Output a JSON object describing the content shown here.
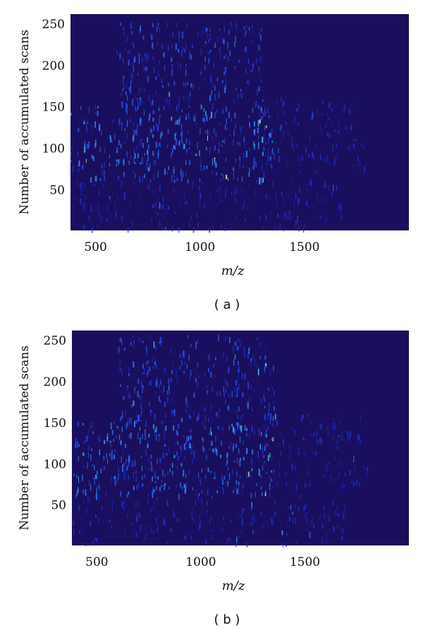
{
  "chart_data": [
    {
      "type": "heatmap",
      "caption": "( a )",
      "xlabel": "m/z",
      "ylabel": "Number of accumulated scans",
      "xlim": [
        380,
        2000
      ],
      "ylim": [
        1,
        262
      ],
      "xticks": [
        500,
        1000,
        1500
      ],
      "yticks": [
        50,
        100,
        150,
        200,
        250
      ],
      "colormap": [
        "#1a0f5e",
        "#1b2bd0",
        "#2e6bff",
        "#2bd0e0",
        "#e8ff8a"
      ],
      "background": "#1a0f5e",
      "density_regions": [
        {
          "mz_range": [
            380,
            1350
          ],
          "scan_range": [
            60,
            150
          ],
          "intensity": "high"
        },
        {
          "mz_range": [
            600,
            1300
          ],
          "scan_range": [
            150,
            250
          ],
          "intensity": "medium"
        },
        {
          "mz_range": [
            1300,
            1800
          ],
          "scan_range": [
            70,
            160
          ],
          "intensity": "low"
        },
        {
          "mz_range": [
            380,
            1700
          ],
          "scan_range": [
            1,
            60
          ],
          "intensity": "low"
        }
      ]
    },
    {
      "type": "heatmap",
      "caption": "( b )",
      "xlabel": "m/z",
      "ylabel": "Number of accumulated scans",
      "xlim": [
        380,
        2000
      ],
      "ylim": [
        1,
        262
      ],
      "xticks": [
        500,
        1000,
        1500
      ],
      "yticks": [
        50,
        100,
        150,
        200,
        250
      ],
      "colormap": [
        "#1a0f5e",
        "#1b2bd0",
        "#2e6bff",
        "#2bd0e0",
        "#e8ff8a"
      ],
      "background": "#1a0f5e",
      "density_regions": [
        {
          "mz_range": [
            380,
            1350
          ],
          "scan_range": [
            60,
            150
          ],
          "intensity": "high"
        },
        {
          "mz_range": [
            600,
            1350
          ],
          "scan_range": [
            150,
            255
          ],
          "intensity": "medium"
        },
        {
          "mz_range": [
            1300,
            1800
          ],
          "scan_range": [
            70,
            160
          ],
          "intensity": "low"
        },
        {
          "mz_range": [
            380,
            1700
          ],
          "scan_range": [
            1,
            60
          ],
          "intensity": "low"
        }
      ]
    }
  ]
}
